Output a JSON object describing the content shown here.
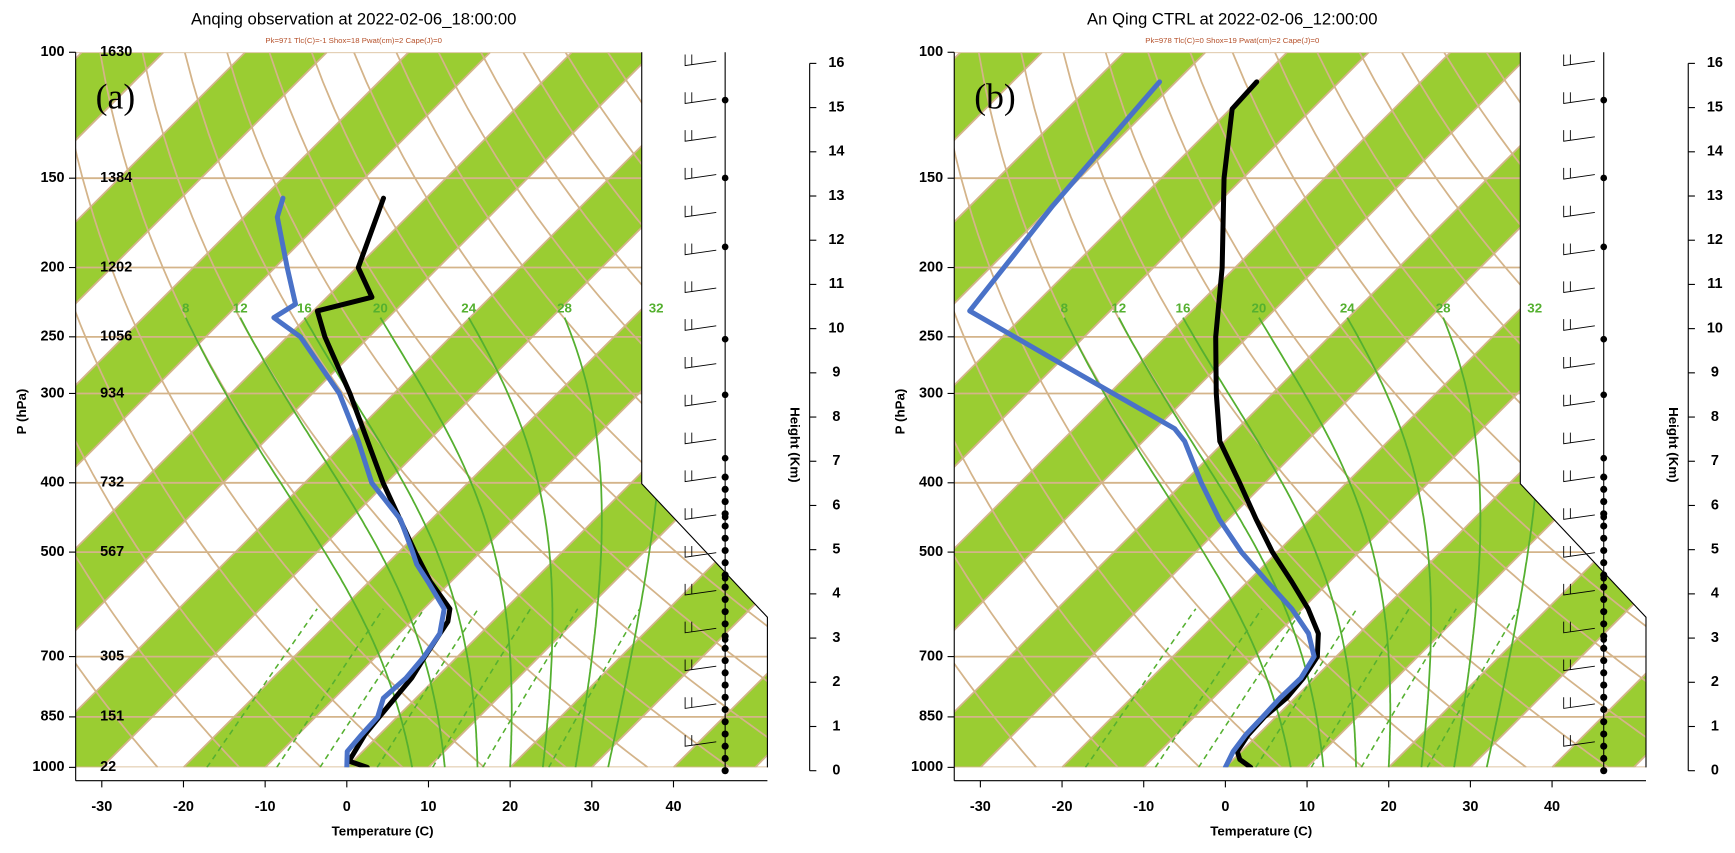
{
  "chart_data": [
    {
      "type": "skewt",
      "title": "Anqing observation at 2022-02-06_18:00:00",
      "subtitle": "Pk=971 Tlc(C)=-1 Shox=18 Pwat(cm)=2 Cape(J)=0",
      "panel_label": "(a)",
      "xlabel": "Temperature (C)",
      "ylabel": "P (hPa)",
      "y2label": "Height (Km)",
      "xlim": [
        -33.2,
        51.5
      ],
      "xticks": [
        -30,
        -20,
        -10,
        0,
        10,
        20,
        30,
        40
      ],
      "ylim": [
        1000,
        100
      ],
      "log_y": true,
      "yticks": [
        100,
        150,
        200,
        250,
        300,
        400,
        500,
        700,
        850,
        1000
      ],
      "height_labels": [
        1630,
        1384,
        1202,
        1056,
        934,
        732,
        567,
        305,
        151,
        22
      ],
      "y2lim": [
        0,
        16
      ],
      "y2ticks": [
        0,
        1,
        2,
        3,
        4,
        5,
        6,
        7,
        8,
        9,
        10,
        11,
        12,
        13,
        14,
        15,
        16
      ],
      "moist_adiabat_labels": [
        8,
        12,
        16,
        20,
        24,
        28,
        32
      ],
      "band_color": "#9acd32",
      "series": [
        {
          "color": "#000000",
          "pressure": [
            1000,
            980,
            900,
            850,
            750,
            700,
            625,
            600,
            550,
            500,
            400,
            300,
            250,
            230,
            220,
            200,
            160
          ],
          "values": [
            2.5,
            -0.5,
            -1.8,
            -2.2,
            -3.0,
            -4.0,
            -5.5,
            -6.8,
            -12.5,
            -18.0,
            -30.4,
            -45.4,
            -55.4,
            -59.5,
            -54.5,
            -59.8,
            -65.2
          ]
        },
        {
          "color": "#4a72c8",
          "pressure": [
            1000,
            950,
            900,
            850,
            800,
            750,
            700,
            650,
            600,
            550,
            520,
            500,
            450,
            400,
            350,
            300,
            250,
            235,
            225,
            200,
            170,
            160
          ],
          "values": [
            0,
            -1.9,
            -2.2,
            -2.4,
            -4.0,
            -3.7,
            -4.1,
            -5.0,
            -7.5,
            -12.8,
            -16.3,
            -18.3,
            -23.8,
            -31.8,
            -38.5,
            -46.7,
            -58.4,
            -64,
            -63,
            -68.5,
            -75.9,
            -77.5
          ]
        }
      ]
    },
    {
      "type": "skewt",
      "title": "An Qing CTRL at 2022-02-06_12:00:00",
      "subtitle": "Pk=978 Tlc(C)=0 Shox=19 Pwat(cm)=2 Cape(J)=0",
      "panel_label": "(b)",
      "xlabel": "Temperature (C)",
      "ylabel": "P (hPa)",
      "y2label": "Height (Km)",
      "xlim": [
        -33.2,
        51.5
      ],
      "xticks": [
        -30,
        -20,
        -10,
        0,
        10,
        20,
        30,
        40
      ],
      "ylim": [
        1000,
        100
      ],
      "log_y": true,
      "yticks": [
        100,
        150,
        200,
        250,
        300,
        400,
        500,
        700,
        850,
        1000
      ],
      "y2lim": [
        0,
        16
      ],
      "y2ticks": [
        0,
        1,
        2,
        3,
        4,
        5,
        6,
        7,
        8,
        9,
        10,
        11,
        12,
        13,
        14,
        15,
        16
      ],
      "moist_adiabat_labels": [
        8,
        12,
        16,
        20,
        24,
        28,
        32
      ],
      "band_color": "#9acd32",
      "series": [
        {
          "color": "#000000",
          "pressure": [
            1000,
            975,
            950,
            900,
            850,
            800,
            750,
            700,
            650,
            600,
            550,
            500,
            450,
            400,
            350,
            300,
            250,
            200,
            150,
            120,
            110
          ],
          "values": [
            3.1,
            0.8,
            -0.5,
            -1.2,
            -1.4,
            -1.0,
            -1.4,
            -2.3,
            -5.0,
            -9.3,
            -14.6,
            -20.6,
            -26.6,
            -33.1,
            -40.6,
            -46.9,
            -53.9,
            -61.6,
            -72.3,
            -79.8,
            -80.1
          ]
        },
        {
          "color": "#4a72c8",
          "pressure": [
            1000,
            950,
            900,
            850,
            800,
            750,
            700,
            650,
            600,
            550,
            500,
            450,
            400,
            350,
            336,
            268,
            230,
            164,
            110
          ],
          "values": [
            0,
            -1.0,
            -1.5,
            -1.6,
            -1.8,
            -1.7,
            -2.7,
            -6.2,
            -11.3,
            -17.6,
            -24.4,
            -31.1,
            -37.8,
            -44.9,
            -47.7,
            -71.3,
            -87.2,
            -89.9,
            -92.0
          ]
        }
      ]
    }
  ]
}
